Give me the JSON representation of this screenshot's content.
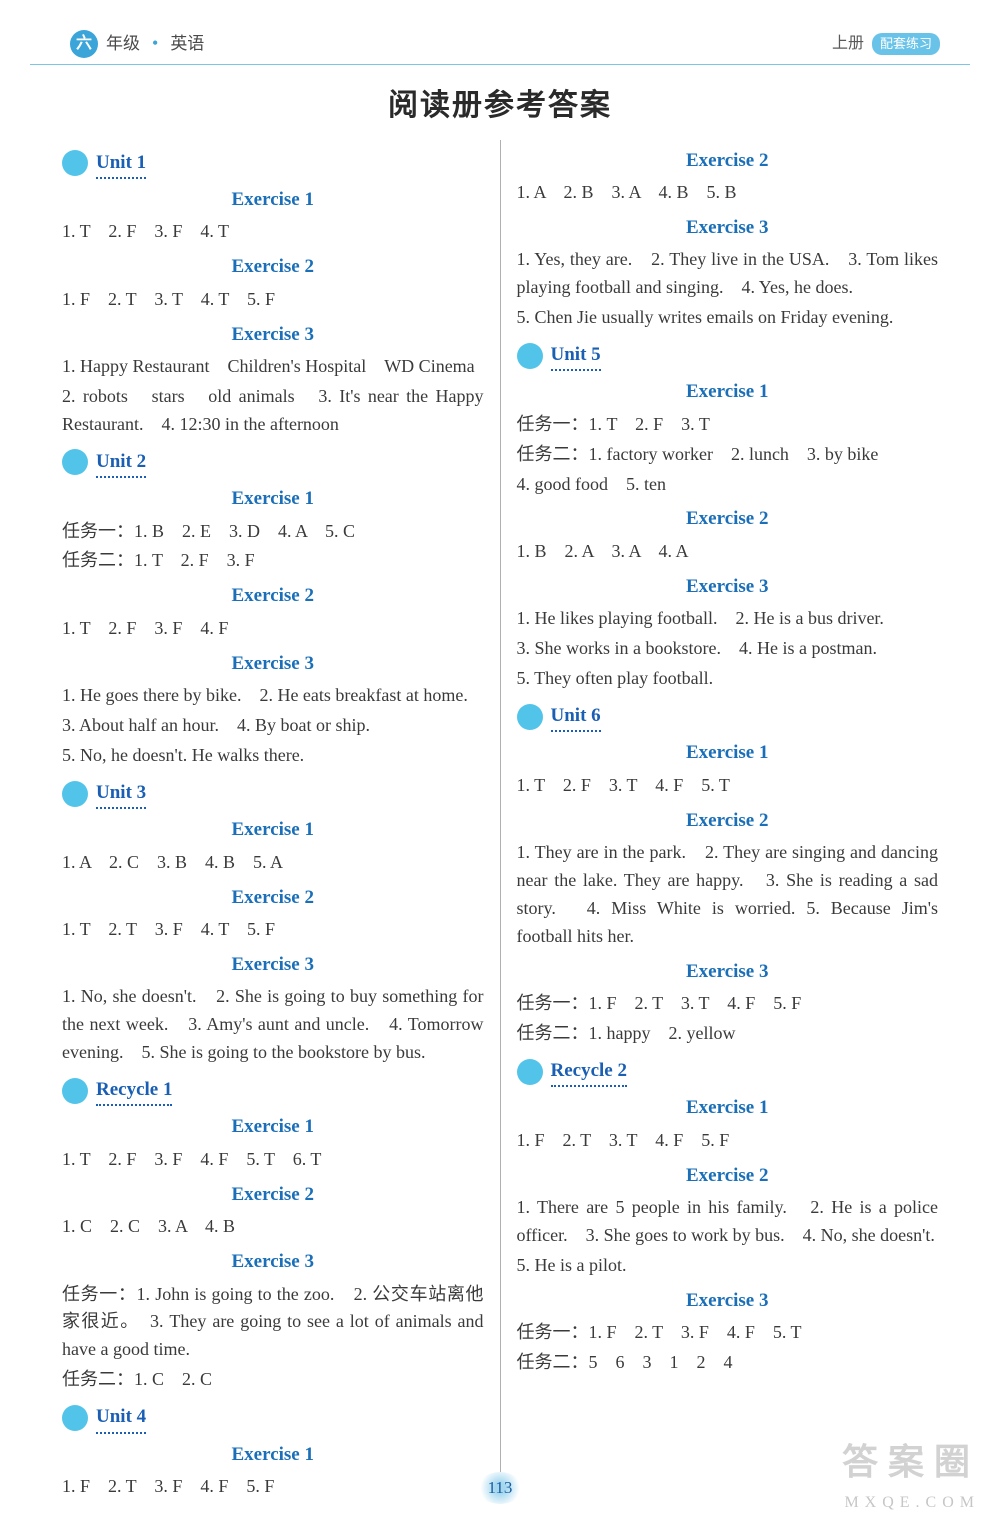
{
  "header": {
    "grade_char": "六",
    "grade_label": "年级",
    "subject": "英语",
    "volume": "上册",
    "badge": "配套练习"
  },
  "main_title": "阅读册参考答案",
  "page_number": "113",
  "watermark_big": "答案圈",
  "watermark_small": "MXQE.COM",
  "left": [
    {
      "type": "unit",
      "text": "Unit 1"
    },
    {
      "type": "ex",
      "text": "Exercise 1"
    },
    {
      "type": "line",
      "text": "1. T　2. F　3. F　4. T"
    },
    {
      "type": "ex",
      "text": "Exercise 2"
    },
    {
      "type": "line",
      "text": "1. F　2. T　3. T　4. T　5. F"
    },
    {
      "type": "ex",
      "text": "Exercise 3"
    },
    {
      "type": "line",
      "text": "1. Happy Restaurant　Children's Hospital　WD Cinema"
    },
    {
      "type": "line",
      "text": "2. robots　stars　old animals　3. It's near the Happy Restaurant.　4. 12:30 in the afternoon"
    },
    {
      "type": "unit",
      "text": "Unit 2"
    },
    {
      "type": "ex",
      "text": "Exercise 1"
    },
    {
      "type": "line",
      "text": "任务一：1. B　2. E　3. D　4. A　5. C"
    },
    {
      "type": "line",
      "text": "任务二：1. T　2. F　3. F"
    },
    {
      "type": "ex",
      "text": "Exercise 2"
    },
    {
      "type": "line",
      "text": "1. T　2. F　3. F　4. F"
    },
    {
      "type": "ex",
      "text": "Exercise 3"
    },
    {
      "type": "line",
      "text": "1. He goes there by bike.　2. He eats breakfast at home."
    },
    {
      "type": "line",
      "text": "3. About half an hour.　4. By boat or ship."
    },
    {
      "type": "line",
      "text": "5. No, he doesn't. He walks there."
    },
    {
      "type": "unit",
      "text": "Unit 3"
    },
    {
      "type": "ex",
      "text": "Exercise 1"
    },
    {
      "type": "line",
      "text": "1. A　2. C　3. B　4. B　5. A"
    },
    {
      "type": "ex",
      "text": "Exercise 2"
    },
    {
      "type": "line",
      "text": "1. T　2. T　3. F　4. T　5. F"
    },
    {
      "type": "ex",
      "text": "Exercise 3"
    },
    {
      "type": "line",
      "text": "1. No, she doesn't.　2. She is going to buy something for the next week.　3. Amy's aunt and uncle.　4. Tomorrow evening.　5. She is going to the bookstore by bus."
    },
    {
      "type": "unit",
      "text": "Recycle 1"
    },
    {
      "type": "ex",
      "text": "Exercise 1"
    },
    {
      "type": "line",
      "text": "1. T　2. F　3. F　4. F　5. T　6. T"
    },
    {
      "type": "ex",
      "text": "Exercise 2"
    },
    {
      "type": "line",
      "text": "1. C　2. C　3. A　4. B"
    },
    {
      "type": "ex",
      "text": "Exercise 3"
    },
    {
      "type": "line",
      "text": "任务一：1. John is going to the zoo.　2. 公交车站离他家很近。　3. They are going to see a lot of animals and have a good time."
    },
    {
      "type": "line",
      "text": "任务二：1. C　2. C"
    },
    {
      "type": "unit",
      "text": "Unit 4"
    },
    {
      "type": "ex",
      "text": "Exercise 1"
    },
    {
      "type": "line",
      "text": "1. F　2. T　3. F　4. F　5. F"
    }
  ],
  "right": [
    {
      "type": "ex",
      "text": "Exercise 2"
    },
    {
      "type": "line",
      "text": "1. A　2. B　3. A　4. B　5. B"
    },
    {
      "type": "ex",
      "text": "Exercise 3"
    },
    {
      "type": "line",
      "text": "1. Yes, they are.　2. They live in the USA.　3. Tom likes playing football and singing.　4. Yes, he does."
    },
    {
      "type": "line",
      "text": "5. Chen Jie usually writes emails on Friday evening."
    },
    {
      "type": "unit",
      "text": "Unit 5"
    },
    {
      "type": "ex",
      "text": "Exercise 1"
    },
    {
      "type": "line",
      "text": "任务一：1. T　2. F　3. T"
    },
    {
      "type": "line",
      "text": "任务二：1. factory worker　2. lunch　3. by bike"
    },
    {
      "type": "line",
      "text": "4. good food　5. ten"
    },
    {
      "type": "ex",
      "text": "Exercise 2"
    },
    {
      "type": "line",
      "text": "1. B　2. A　3. A　4. A"
    },
    {
      "type": "ex",
      "text": "Exercise 3"
    },
    {
      "type": "line",
      "text": "1. He likes playing football.　2. He is a bus driver."
    },
    {
      "type": "line",
      "text": "3. She works in a bookstore.　4. He is a postman."
    },
    {
      "type": "line",
      "text": "5. They often play football."
    },
    {
      "type": "unit",
      "text": "Unit 6"
    },
    {
      "type": "ex",
      "text": "Exercise 1"
    },
    {
      "type": "line",
      "text": "1. T　2. F　3. T　4. F　5. T"
    },
    {
      "type": "ex",
      "text": "Exercise 2"
    },
    {
      "type": "line",
      "text": "1. They are in the park.　2. They are singing and dancing near the lake. They are happy.　3. She is reading a sad story.　4. Miss White is worried. 5. Because Jim's football hits her."
    },
    {
      "type": "ex",
      "text": "Exercise 3"
    },
    {
      "type": "line",
      "text": "任务一：1. F　2. T　3. T　4. F　5. F"
    },
    {
      "type": "line",
      "text": "任务二：1. happy　2. yellow"
    },
    {
      "type": "unit",
      "text": "Recycle 2"
    },
    {
      "type": "ex",
      "text": "Exercise 1"
    },
    {
      "type": "line",
      "text": "1. F　2. T　3. T　4. F　5. F"
    },
    {
      "type": "ex",
      "text": "Exercise 2"
    },
    {
      "type": "line",
      "text": "1. There are 5 people in his family.　2. He is a police officer.　3. She goes to work by bus.　4. No, she doesn't."
    },
    {
      "type": "line",
      "text": "5. He is a pilot."
    },
    {
      "type": "ex",
      "text": "Exercise 3"
    },
    {
      "type": "line",
      "text": "任务一：1. F　2. T　3. F　4. F　5. T"
    },
    {
      "type": "line",
      "text": "任务二：5　6　3　1　2　4"
    }
  ]
}
